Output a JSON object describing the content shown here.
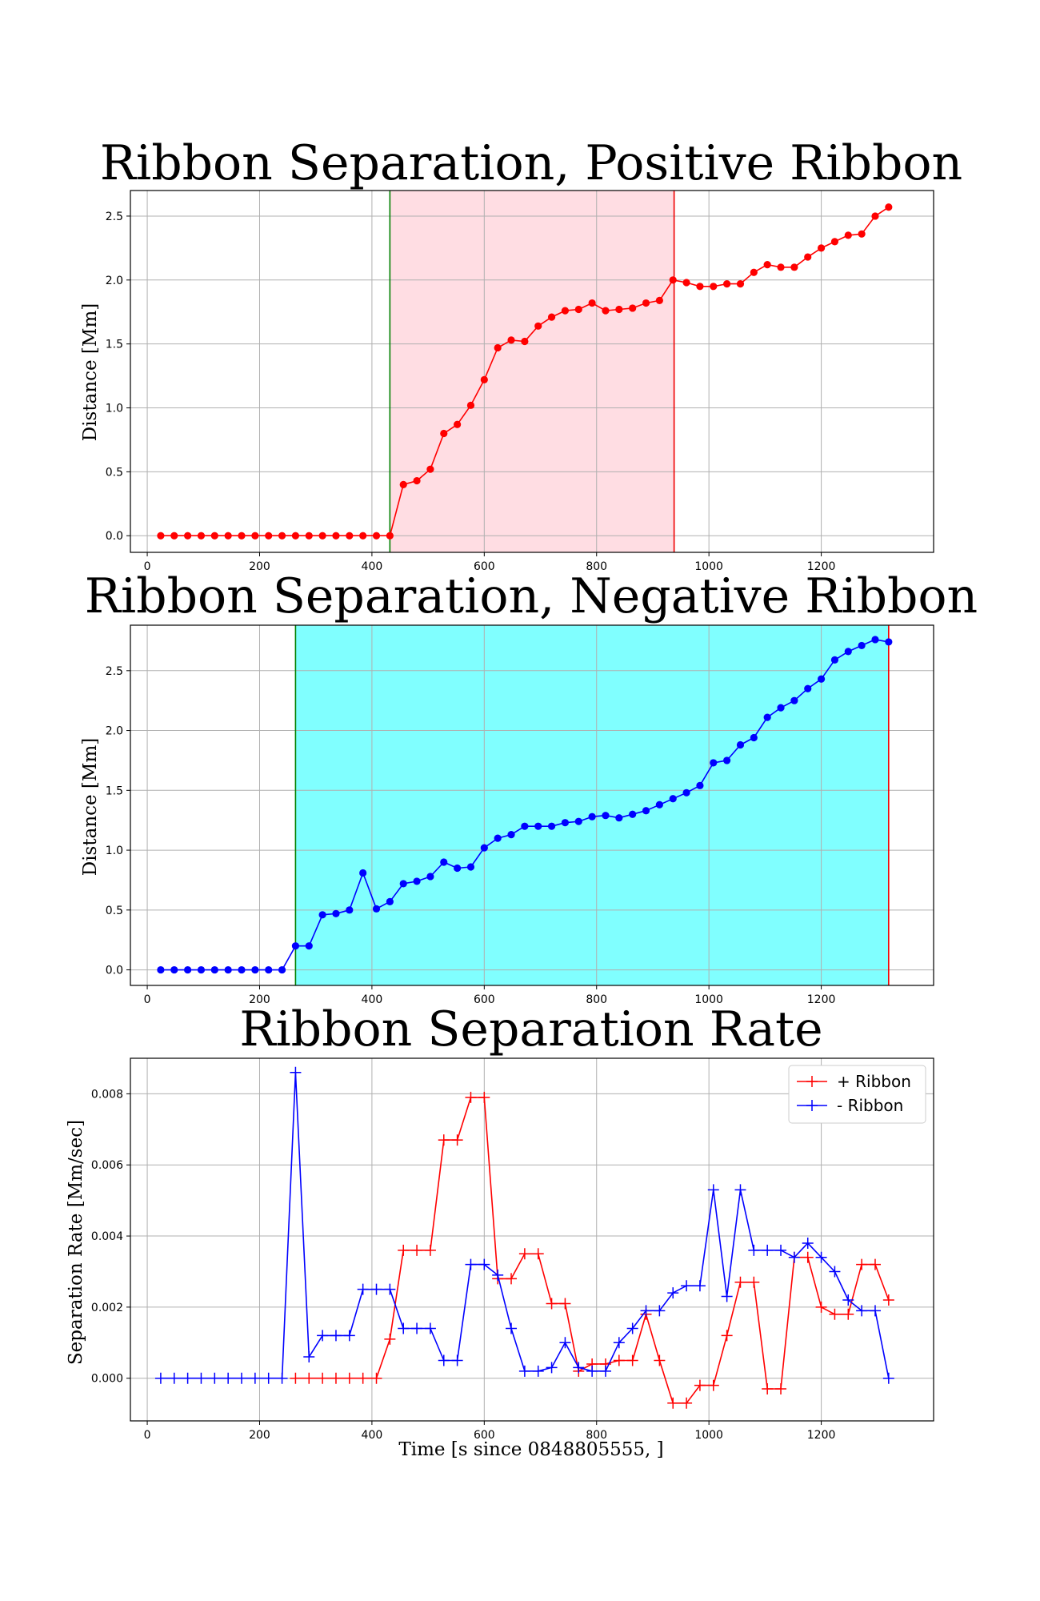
{
  "chart_data": [
    {
      "type": "line",
      "title": "Ribbon Separation, Positive Ribbon",
      "xlabel": "",
      "ylabel": "Distance [Mm]",
      "xlim": [
        -30,
        1400
      ],
      "ylim": [
        -0.13,
        2.7
      ],
      "xticks": [
        0,
        200,
        400,
        600,
        800,
        1000,
        1200
      ],
      "yticks": [
        0.0,
        0.5,
        1.0,
        1.5,
        2.0,
        2.5
      ],
      "xtick_labels": [
        "0",
        "200",
        "400",
        "600",
        "800",
        "1000",
        "1200"
      ],
      "ytick_labels": [
        "0.0",
        "0.5",
        "1.0",
        "1.5",
        "2.0",
        "2.5"
      ],
      "grid": true,
      "shade": {
        "start": 432,
        "end": 938,
        "color": "#ffdde3"
      },
      "vlines": [
        {
          "x": 432,
          "color": "#008000"
        },
        {
          "x": 938,
          "color": "#ee0000"
        }
      ],
      "series": [
        {
          "color": "#ff0000",
          "marker": "circle",
          "x": [
            24,
            48,
            72,
            96,
            120,
            144,
            168,
            192,
            216,
            240,
            264,
            288,
            312,
            336,
            360,
            384,
            408,
            432,
            456,
            480,
            504,
            528,
            552,
            576,
            600,
            624,
            648,
            672,
            696,
            720,
            744,
            768,
            792,
            816,
            840,
            864,
            888,
            912,
            936,
            960,
            984,
            1008,
            1032,
            1056,
            1080,
            1104,
            1128,
            1152,
            1176,
            1200,
            1224,
            1248,
            1272,
            1296,
            1320
          ],
          "y": [
            0,
            0,
            0,
            0,
            0,
            0,
            0,
            0,
            0,
            0,
            0,
            0,
            0,
            0,
            0,
            0,
            0,
            0,
            0.4,
            0.43,
            0.52,
            0.8,
            0.87,
            1.02,
            1.22,
            1.47,
            1.53,
            1.52,
            1.64,
            1.71,
            1.76,
            1.77,
            1.82,
            1.76,
            1.77,
            1.78,
            1.82,
            1.84,
            2.0,
            1.98,
            1.95,
            1.95,
            1.97,
            1.97,
            2.06,
            2.12,
            2.1,
            2.1,
            2.18,
            2.25,
            2.3,
            2.35,
            2.36,
            2.5,
            2.57
          ]
        }
      ]
    },
    {
      "type": "line",
      "title": "Ribbon Separation, Negative Ribbon",
      "xlabel": "",
      "ylabel": "Distance [Mm]",
      "xlim": [
        -30,
        1400
      ],
      "ylim": [
        -0.13,
        2.88
      ],
      "xticks": [
        0,
        200,
        400,
        600,
        800,
        1000,
        1200
      ],
      "yticks": [
        0.0,
        0.5,
        1.0,
        1.5,
        2.0,
        2.5
      ],
      "xtick_labels": [
        "0",
        "200",
        "400",
        "600",
        "800",
        "1000",
        "1200"
      ],
      "ytick_labels": [
        "0.0",
        "0.5",
        "1.0",
        "1.5",
        "2.0",
        "2.5"
      ],
      "grid": true,
      "shade": {
        "start": 264,
        "end": 1320,
        "color": "#80ffff"
      },
      "vlines": [
        {
          "x": 264,
          "color": "#008000"
        },
        {
          "x": 1320,
          "color": "#ee0000"
        }
      ],
      "series": [
        {
          "color": "#0000ff",
          "marker": "circle",
          "x": [
            24,
            48,
            72,
            96,
            120,
            144,
            168,
            192,
            216,
            240,
            264,
            288,
            312,
            336,
            360,
            384,
            408,
            432,
            456,
            480,
            504,
            528,
            552,
            576,
            600,
            624,
            648,
            672,
            696,
            720,
            744,
            768,
            792,
            816,
            840,
            864,
            888,
            912,
            936,
            960,
            984,
            1008,
            1032,
            1056,
            1080,
            1104,
            1128,
            1152,
            1176,
            1200,
            1224,
            1248,
            1272,
            1296,
            1320
          ],
          "y": [
            0,
            0,
            0,
            0,
            0,
            0,
            0,
            0,
            0,
            0,
            0.2,
            0.2,
            0.46,
            0.47,
            0.5,
            0.81,
            0.51,
            0.57,
            0.72,
            0.74,
            0.78,
            0.9,
            0.85,
            0.86,
            1.02,
            1.1,
            1.13,
            1.2,
            1.2,
            1.2,
            1.23,
            1.24,
            1.28,
            1.29,
            1.27,
            1.3,
            1.33,
            1.38,
            1.43,
            1.48,
            1.54,
            1.73,
            1.75,
            1.88,
            1.94,
            2.11,
            2.19,
            2.25,
            2.35,
            2.43,
            2.59,
            2.66,
            2.71,
            2.76,
            2.74
          ]
        }
      ]
    },
    {
      "type": "line",
      "title": "Ribbon Separation Rate",
      "xlabel": "Time [s since 0848805555, ]",
      "ylabel": "Separation Rate [Mm/sec]",
      "xlim": [
        -30,
        1400
      ],
      "ylim": [
        -0.0012,
        0.009
      ],
      "xticks": [
        0,
        200,
        400,
        600,
        800,
        1000,
        1200
      ],
      "yticks": [
        0.0,
        0.002,
        0.004,
        0.006,
        0.008
      ],
      "xtick_labels": [
        "0",
        "200",
        "400",
        "600",
        "800",
        "1000",
        "1200"
      ],
      "ytick_labels": [
        "0.000",
        "0.002",
        "0.004",
        "0.006",
        "0.008"
      ],
      "grid": true,
      "legend": {
        "position": "top-right"
      },
      "series": [
        {
          "name": "+ Ribbon",
          "color": "#ff0000",
          "marker": "plus",
          "x": [
            264,
            288,
            312,
            336,
            360,
            384,
            408,
            432,
            456,
            480,
            504,
            528,
            552,
            576,
            600,
            624,
            648,
            672,
            696,
            720,
            744,
            768,
            792,
            816,
            840,
            864,
            888,
            912,
            936,
            960,
            984,
            1008,
            1032,
            1056,
            1080,
            1104,
            1128,
            1152,
            1176,
            1200,
            1224,
            1248,
            1272,
            1296,
            1320
          ],
          "y": [
            0,
            0,
            0,
            0,
            0,
            0,
            0,
            0.0011,
            0.0036,
            0.0036,
            0.0036,
            0.0067,
            0.0067,
            0.0079,
            0.0079,
            0.0028,
            0.0028,
            0.0035,
            0.0035,
            0.0021,
            0.0021,
            0.0002,
            0.0004,
            0.0004,
            0.0005,
            0.0005,
            0.0018,
            0.0005,
            -0.0007,
            -0.0007,
            -0.0002,
            -0.0002,
            0.0012,
            0.0027,
            0.0027,
            -0.0003,
            -0.0003,
            0.0034,
            0.0034,
            0.002,
            0.0018,
            0.0018,
            0.0032,
            0.0032,
            0.0022
          ]
        },
        {
          "name": "- Ribbon",
          "color": "#0000ff",
          "marker": "plus",
          "x": [
            24,
            48,
            72,
            96,
            120,
            144,
            168,
            192,
            216,
            240,
            264,
            288,
            312,
            336,
            360,
            384,
            408,
            432,
            456,
            480,
            504,
            528,
            552,
            576,
            600,
            624,
            648,
            672,
            696,
            720,
            744,
            768,
            792,
            816,
            840,
            864,
            888,
            912,
            936,
            960,
            984,
            1008,
            1032,
            1056,
            1080,
            1104,
            1128,
            1152,
            1176,
            1200,
            1224,
            1248,
            1272,
            1296,
            1320
          ],
          "y": [
            0,
            0,
            0,
            0,
            0,
            0,
            0,
            0,
            0,
            0,
            0.0086,
            0.0006,
            0.0012,
            0.0012,
            0.0012,
            0.0025,
            0.0025,
            0.0025,
            0.0014,
            0.0014,
            0.0014,
            0.0005,
            0.0005,
            0.0032,
            0.0032,
            0.0029,
            0.0014,
            0.0002,
            0.0002,
            0.0003,
            0.001,
            0.0003,
            0.0002,
            0.0002,
            0.001,
            0.0014,
            0.0019,
            0.0019,
            0.0024,
            0.0026,
            0.0026,
            0.0053,
            0.0023,
            0.0053,
            0.0036,
            0.0036,
            0.0036,
            0.0034,
            0.0038,
            0.0034,
            0.003,
            0.0022,
            0.0019,
            0.0019,
            0
          ]
        }
      ]
    }
  ]
}
